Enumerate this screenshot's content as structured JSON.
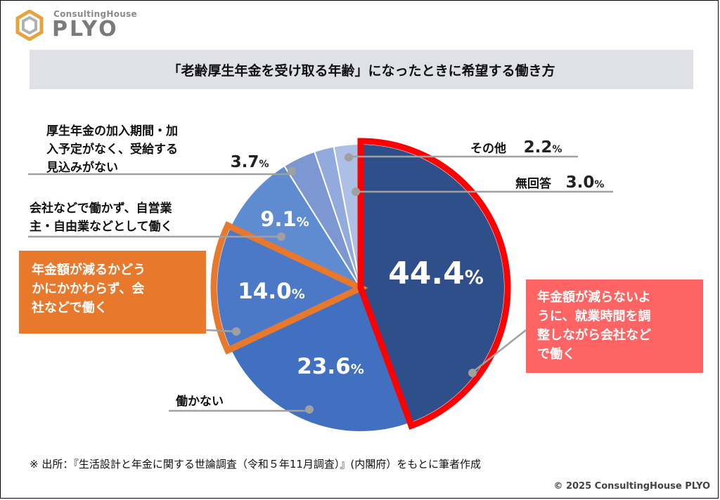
{
  "brand": {
    "small": "ConsultingHouse",
    "big": "PLYO"
  },
  "title": "「老齢厚生年金を受け取る年齢」になったときに希望する働き方",
  "chart_data": {
    "type": "pie",
    "title": "「老齢厚生年金を受け取る年齢」になったときに希望する働き方",
    "slices": [
      {
        "id": "s1",
        "label": "年金額が減らないように、就業時間を調整しながら会社などで働く",
        "value": 44.4,
        "value_text": "44.4",
        "color": "#2e4f8a"
      },
      {
        "id": "s2",
        "label": "働かない",
        "value": 23.6,
        "value_text": "23.6",
        "color": "#4170c0"
      },
      {
        "id": "s3",
        "label": "年金額が減るかどうかにかかわらず、会社などで働く",
        "value": 14.0,
        "value_text": "14.0",
        "color": "#4b79c8"
      },
      {
        "id": "s4",
        "label": "会社などで働かず、自営業主・自由業などとして働く",
        "value": 9.1,
        "value_text": "9.1",
        "color": "#5f8bd0"
      },
      {
        "id": "s5",
        "label": "厚生年金の加入期間・加入予定がなく、受給する見込みがない",
        "value": 3.7,
        "value_text": "3.7",
        "color": "#7c97d2"
      },
      {
        "id": "s6",
        "label": "その他",
        "value": 2.2,
        "value_text": "2.2",
        "color": "#93aadc"
      },
      {
        "id": "s7",
        "label": "無回答",
        "value": 3.0,
        "value_text": "3.0",
        "color": "#aebfe6"
      }
    ],
    "unit": "%",
    "highlighted": [
      "s1",
      "s3"
    ]
  },
  "annotations": {
    "s5_lines": [
      "厚生年金の加入期間・加",
      "入予定がなく、受給する",
      "見込みがない"
    ],
    "s4_lines": [
      "会社などで働かず、自営業",
      "主・自由業などとして働く"
    ],
    "s3_lines": [
      "年金額が減るかどう",
      "かにかかわらず、会",
      "社などで働く"
    ],
    "s1_lines": [
      "年金額が減らないよ",
      "うに、就業時間を調",
      "整しながら会社など",
      "で働く"
    ],
    "s2_label": "働かない",
    "s6_label": "その他",
    "s7_label": "無回答"
  },
  "footnote": "※ 出所：『生活設計と年金に関する世論調査（令和５年11月調査）』(内閣府）をもとに筆者作成",
  "copyright": "© 2025 ConsultingHouse PLYO",
  "colors": {
    "highlight_red": "#ff0000",
    "highlight_orange": "#e8792c",
    "leader": "#a0a0a0"
  }
}
